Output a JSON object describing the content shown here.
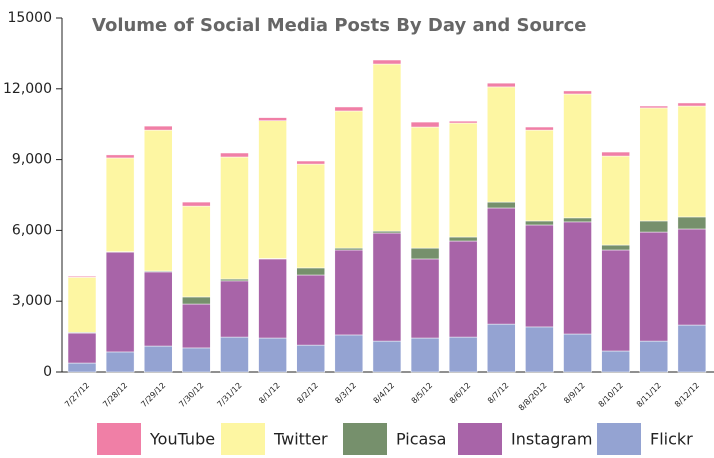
{
  "chart_data": {
    "type": "stacked_bar",
    "title": "Volume of Social Media Posts By Day and Source",
    "categories": [
      "7/27/12",
      "7/28/12",
      "7/29/12",
      "7/30/12",
      "7/31/12",
      "8/1/12",
      "8/2/12",
      "8/3/12",
      "8/4/12",
      "8/5/12",
      "8/6/12",
      "8/7/12",
      "8/8/2012",
      "8/9/12",
      "8/10/12",
      "8/11/12",
      "8/12/12"
    ],
    "series": [
      {
        "name": "YouTube",
        "color": "#f07fa6",
        "values": [
          45,
          130,
          170,
          170,
          170,
          130,
          130,
          170,
          170,
          210,
          80,
          160,
          130,
          130,
          170,
          80,
          130
        ]
      },
      {
        "name": "Twitter",
        "color": "#fdf6a2",
        "values": [
          2330,
          3970,
          5970,
          3850,
          5170,
          5840,
          4400,
          5810,
          7080,
          5130,
          4830,
          4880,
          3850,
          5250,
          3770,
          4790,
          4700
        ]
      },
      {
        "name": "Picasa",
        "color": "#76906c",
        "values": [
          30,
          20,
          40,
          300,
          80,
          20,
          300,
          80,
          80,
          460,
          170,
          250,
          170,
          170,
          210,
          470,
          510
        ]
      },
      {
        "name": "Instagram",
        "color": "#a864a8",
        "values": [
          1270,
          4230,
          3140,
          1860,
          2380,
          3350,
          2970,
          3600,
          4580,
          3350,
          4070,
          4920,
          4320,
          4750,
          4280,
          4620,
          4070
        ]
      },
      {
        "name": "Flickr",
        "color": "#94a3d2",
        "values": [
          380,
          850,
          1100,
          1020,
          1480,
          1440,
          1140,
          1570,
          1310,
          1440,
          1480,
          2030,
          1910,
          1610,
          890,
          1310,
          1990
        ]
      }
    ],
    "ylim": [
      0,
      15000
    ],
    "yticks": [
      0,
      {
        "value": 3000,
        "label": "3,000"
      },
      {
        "value": 6000,
        "label": "6,000"
      },
      {
        "value": 9000,
        "label": "9,000"
      },
      {
        "value": 12000,
        "label": "12,000"
      },
      15000
    ],
    "legend": "bottom"
  }
}
